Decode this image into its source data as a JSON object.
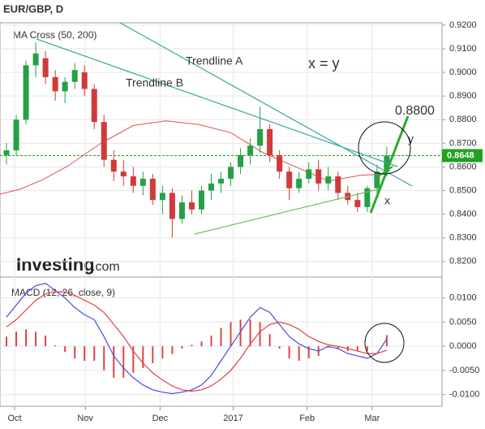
{
  "chart_data": [
    {
      "type": "candlestick",
      "title": "EUR/GBP, D",
      "subtitle": "MA Cross (50, 200)",
      "logo": {
        "brand": "Investing",
        "suffix": ".com"
      },
      "annotations": [
        "Trendline A",
        "Trendline B",
        "x = y",
        "0.8800",
        "y",
        "x"
      ],
      "up_color": "#26a046",
      "down_color": "#d03a3a",
      "x": [
        1,
        4,
        7,
        10,
        13,
        16,
        19,
        22,
        25,
        28,
        31,
        34,
        37,
        40,
        43,
        46,
        49,
        52,
        55,
        58,
        61,
        64,
        67,
        70,
        73,
        76,
        79,
        82,
        85,
        88,
        91,
        94,
        97,
        100,
        103,
        106,
        109,
        112,
        115,
        118
      ],
      "open": [
        0.865,
        0.867,
        0.88,
        0.903,
        0.906,
        0.898,
        0.892,
        0.896,
        0.9,
        0.893,
        0.879,
        0.863,
        0.858,
        0.856,
        0.852,
        0.855,
        0.846,
        0.849,
        0.838,
        0.845,
        0.842,
        0.85,
        0.853,
        0.855,
        0.86,
        0.865,
        0.869,
        0.876,
        0.865,
        0.858,
        0.851,
        0.855,
        0.859,
        0.853,
        0.856,
        0.849,
        0.846,
        0.843,
        0.851,
        0.858
      ],
      "high": [
        0.87,
        0.882,
        0.905,
        0.9125,
        0.909,
        0.901,
        0.898,
        0.904,
        0.903,
        0.895,
        0.882,
        0.867,
        0.863,
        0.86,
        0.858,
        0.857,
        0.852,
        0.851,
        0.848,
        0.85,
        0.852,
        0.857,
        0.858,
        0.862,
        0.868,
        0.872,
        0.8855,
        0.878,
        0.867,
        0.86,
        0.858,
        0.862,
        0.863,
        0.86,
        0.858,
        0.852,
        0.849,
        0.852,
        0.861,
        0.8685
      ],
      "low": [
        0.861,
        0.865,
        0.878,
        0.898,
        0.895,
        0.888,
        0.887,
        0.893,
        0.89,
        0.876,
        0.86,
        0.854,
        0.852,
        0.849,
        0.848,
        0.844,
        0.84,
        0.83,
        0.836,
        0.84,
        0.84,
        0.846,
        0.849,
        0.852,
        0.857,
        0.861,
        0.866,
        0.862,
        0.855,
        0.846,
        0.849,
        0.853,
        0.85,
        0.85,
        0.846,
        0.844,
        0.841,
        0.841,
        0.849,
        0.856
      ],
      "close": [
        0.867,
        0.88,
        0.903,
        0.908,
        0.898,
        0.892,
        0.896,
        0.901,
        0.893,
        0.879,
        0.863,
        0.858,
        0.856,
        0.852,
        0.855,
        0.846,
        0.849,
        0.838,
        0.845,
        0.842,
        0.85,
        0.853,
        0.855,
        0.86,
        0.865,
        0.869,
        0.876,
        0.865,
        0.858,
        0.851,
        0.855,
        0.859,
        0.853,
        0.856,
        0.849,
        0.846,
        0.843,
        0.851,
        0.858,
        0.8648
      ],
      "ma": {
        "color": "#e05050",
        "x": [
          -1,
          5,
          12,
          20,
          30,
          40,
          50,
          60,
          70,
          80,
          90,
          100,
          110,
          118
        ],
        "values": [
          0.8485,
          0.8505,
          0.8545,
          0.8605,
          0.87,
          0.8775,
          0.8795,
          0.878,
          0.8745,
          0.866,
          0.86,
          0.854,
          0.8565,
          0.857
        ]
      },
      "last_price": 0.8648,
      "last_color": "#1fa31f",
      "xlim": [
        -1,
        135
      ],
      "ylim": [
        0.8134,
        0.921
      ],
      "yticks": [
        {
          "value": 0.92,
          "label": "0.9200"
        },
        {
          "value": 0.91,
          "label": "0.9100"
        },
        {
          "value": 0.9,
          "label": "0.9000"
        },
        {
          "value": 0.89,
          "label": "0.8900"
        },
        {
          "value": 0.88,
          "label": "0.8800"
        },
        {
          "value": 0.87,
          "label": "0.8700"
        },
        {
          "value": 0.86,
          "label": "0.8600"
        },
        {
          "value": 0.85,
          "label": "0.8500"
        },
        {
          "value": 0.84,
          "label": "0.8400"
        },
        {
          "value": 0.83,
          "label": "0.8300"
        },
        {
          "value": 0.82,
          "label": "0.8200"
        }
      ],
      "grid": true
    },
    {
      "type": "macd",
      "title": "MACD (12, 26, close, 9)",
      "x": [
        1,
        4,
        7,
        10,
        13,
        16,
        19,
        22,
        25,
        28,
        31,
        34,
        37,
        40,
        43,
        46,
        49,
        52,
        55,
        58,
        61,
        64,
        67,
        70,
        73,
        76,
        79,
        82,
        85,
        88,
        91,
        94,
        97,
        100,
        103,
        106,
        109,
        112,
        115,
        118
      ],
      "series": [
        {
          "name": "MACD",
          "color": "#4a4ae0",
          "values": [
            0.006,
            0.0085,
            0.011,
            0.0125,
            0.013,
            0.0115,
            0.01,
            0.008,
            0.0065,
            0.0055,
            0.002,
            -0.002,
            -0.0045,
            -0.0065,
            -0.008,
            -0.009,
            -0.0095,
            -0.0098,
            -0.0095,
            -0.009,
            -0.008,
            -0.006,
            -0.003,
            0,
            0.003,
            0.006,
            0.008,
            0.007,
            0.0045,
            0.002,
            0.0005,
            -0.0005,
            -0.001,
            0,
            -0.0005,
            -0.0015,
            -0.002,
            -0.0025,
            -0.0015,
            0.0015
          ]
        },
        {
          "name": "Signal",
          "color": "#e04040",
          "values": [
            0.004,
            0.0055,
            0.0075,
            0.0095,
            0.0108,
            0.0113,
            0.0112,
            0.0105,
            0.0095,
            0.0085,
            0.007,
            0.0045,
            0.002,
            -0.001,
            -0.0035,
            -0.0055,
            -0.007,
            -0.0082,
            -0.009,
            -0.0093,
            -0.009,
            -0.0082,
            -0.0068,
            -0.005,
            -0.0025,
            0.0005,
            0.003,
            0.0045,
            0.005,
            0.0045,
            0.0035,
            0.002,
            0.001,
            0.0003,
            0,
            -0.0005,
            -0.001,
            -0.0015,
            -0.0015,
            -0.0008
          ]
        }
      ],
      "histogram": {
        "color": "#d44",
        "values": [
          0.002,
          0.003,
          0.0035,
          0.003,
          0.0022,
          0.0002,
          -0.0012,
          -0.0025,
          -0.003,
          -0.003,
          -0.005,
          -0.0065,
          -0.0065,
          -0.0055,
          -0.0045,
          -0.0035,
          -0.0025,
          -0.0016,
          -0.0005,
          0.0003,
          0.001,
          0.0022,
          0.0038,
          0.005,
          0.0055,
          0.0055,
          0.005,
          0.0025,
          -0.0005,
          -0.0025,
          -0.003,
          -0.0025,
          -0.002,
          -0.0003,
          -0.0005,
          -0.001,
          -0.001,
          -0.001,
          0,
          0.0023
        ]
      },
      "xlim": [
        -1,
        135
      ],
      "ylim": [
        -0.0124,
        0.0143
      ],
      "yticks": [
        {
          "value": 0.01,
          "label": "0.0100"
        },
        {
          "value": 0.005,
          "label": "0.0050"
        },
        {
          "value": 0,
          "label": "0.0000"
        },
        {
          "value": -0.005,
          "label": "-0.0050"
        },
        {
          "value": -0.01,
          "label": "-0.0100"
        }
      ],
      "xticks": [
        {
          "value": 3.5,
          "label": "Oct"
        },
        {
          "value": 25.25,
          "label": "Nov"
        },
        {
          "value": 48.25,
          "label": "Dec"
        },
        {
          "value": 70.75,
          "label": "2017"
        },
        {
          "value": 93.5,
          "label": "Feb"
        },
        {
          "value": 113.5,
          "label": "Mar"
        }
      ],
      "grid": true
    }
  ]
}
